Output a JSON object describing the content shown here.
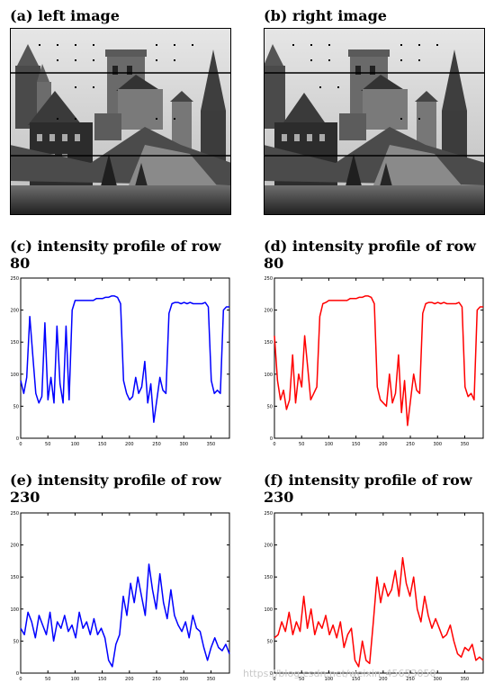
{
  "captions": {
    "a": "(a) left image",
    "b": "(b) right image",
    "c": "(c) intensity profile of row 80",
    "d": "(d) intensity profile of row 80",
    "e": "(e) intensity profile of row 230",
    "f": "(f) intensity profile of row 230"
  },
  "watermark": "https://blog.csdn.net/weixin_45653050",
  "colors": {
    "blue": "#0000ff",
    "red": "#ff0000",
    "photo_sky": "#d2d2d2",
    "photo_dark": "#3a3a3a"
  },
  "chart_data": [
    {
      "panel": "c",
      "type": "line",
      "series": [
        {
          "color": "#0000ff",
          "values": [
            90,
            70,
            95,
            190,
            130,
            70,
            55,
            65,
            180,
            60,
            95,
            55,
            175,
            85,
            55,
            175,
            60,
            200,
            215,
            215,
            215,
            215,
            215,
            215,
            215,
            218,
            218,
            218,
            220,
            220,
            222,
            222,
            220,
            210,
            90,
            70,
            60,
            65,
            95,
            70,
            80,
            120,
            55,
            85,
            25,
            60,
            95,
            75,
            70,
            195,
            210,
            212,
            212,
            210,
            212,
            210,
            212,
            210,
            210,
            210,
            210,
            212,
            205,
            90,
            70,
            75,
            70,
            200,
            205,
            205
          ]
        }
      ],
      "xlim": [
        0,
        384
      ],
      "ylim": [
        0,
        250
      ],
      "xticks": [
        "0",
        "50",
        "100",
        "150",
        "200",
        "250",
        "300",
        "350"
      ],
      "yticks": [
        "0",
        "50",
        "100",
        "150",
        "200",
        "250"
      ]
    },
    {
      "panel": "d",
      "type": "line",
      "series": [
        {
          "color": "#ff0000",
          "values": [
            160,
            90,
            60,
            75,
            45,
            60,
            130,
            55,
            100,
            80,
            160,
            110,
            60,
            70,
            80,
            190,
            210,
            212,
            215,
            215,
            215,
            215,
            215,
            215,
            215,
            218,
            218,
            218,
            220,
            220,
            222,
            222,
            220,
            210,
            80,
            60,
            55,
            50,
            100,
            55,
            70,
            130,
            40,
            90,
            20,
            60,
            100,
            75,
            70,
            195,
            210,
            212,
            212,
            210,
            212,
            210,
            212,
            210,
            210,
            210,
            210,
            212,
            205,
            80,
            65,
            70,
            60,
            200,
            205,
            205
          ]
        }
      ],
      "xlim": [
        0,
        384
      ],
      "ylim": [
        0,
        250
      ],
      "xticks": [
        "0",
        "50",
        "100",
        "150",
        "200",
        "250",
        "300",
        "350"
      ],
      "yticks": [
        "0",
        "50",
        "100",
        "150",
        "200",
        "250"
      ]
    },
    {
      "panel": "e",
      "type": "line",
      "series": [
        {
          "color": "#0000ff",
          "values": [
            70,
            60,
            95,
            80,
            55,
            90,
            75,
            60,
            95,
            50,
            80,
            70,
            90,
            65,
            75,
            55,
            95,
            70,
            80,
            60,
            85,
            60,
            70,
            55,
            20,
            10,
            45,
            60,
            120,
            90,
            140,
            110,
            150,
            120,
            90,
            170,
            130,
            100,
            155,
            110,
            85,
            130,
            90,
            75,
            65,
            80,
            55,
            90,
            70,
            65,
            40,
            20,
            40,
            55,
            40,
            35,
            45,
            30
          ]
        }
      ],
      "xlim": [
        0,
        384
      ],
      "ylim": [
        0,
        250
      ],
      "xticks": [
        "0",
        "50",
        "100",
        "150",
        "200",
        "250",
        "300",
        "350"
      ],
      "yticks": [
        "0",
        "50",
        "100",
        "150",
        "200",
        "250"
      ]
    },
    {
      "panel": "f",
      "type": "line",
      "series": [
        {
          "color": "#ff0000",
          "values": [
            55,
            60,
            80,
            65,
            95,
            60,
            80,
            65,
            120,
            70,
            100,
            60,
            80,
            70,
            90,
            60,
            75,
            55,
            80,
            40,
            60,
            70,
            20,
            10,
            50,
            20,
            15,
            80,
            150,
            110,
            140,
            120,
            130,
            160,
            120,
            180,
            140,
            120,
            150,
            100,
            80,
            120,
            90,
            70,
            85,
            70,
            55,
            60,
            75,
            50,
            30,
            25,
            40,
            35,
            45,
            20,
            25,
            20
          ]
        }
      ],
      "xlim": [
        0,
        384
      ],
      "ylim": [
        0,
        250
      ],
      "xticks": [
        "0",
        "50",
        "100",
        "150",
        "200",
        "250",
        "300",
        "350"
      ],
      "yticks": [
        "0",
        "50",
        "100",
        "150",
        "200",
        "250"
      ]
    }
  ]
}
